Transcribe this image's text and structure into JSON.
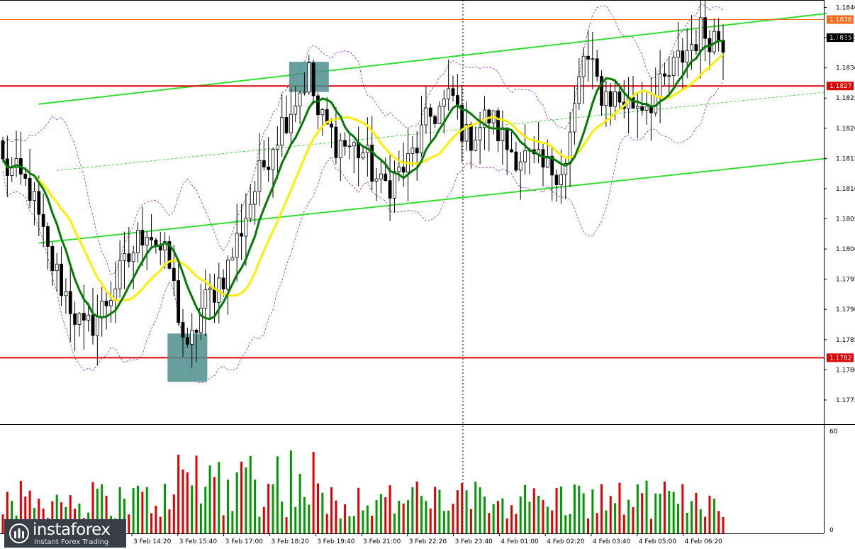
{
  "chart_data": {
    "type": "candlestick",
    "title": "",
    "xlabel": "",
    "ylabel": "",
    "ylim": [
      1.1771,
      1.1841
    ],
    "y_ticks": [
      "1.1840",
      "1.1835",
      "1.1830",
      "1.1825",
      "1.1820",
      "1.1815",
      "1.1810",
      "1.1805",
      "1.1800",
      "1.1795",
      "1.1790",
      "1.1785",
      "1.1780",
      "1.1775"
    ],
    "x_ticks": [
      "3 Feb 14:20",
      "3 Feb 15:40",
      "3 Feb 17:00",
      "3 Feb 18:20",
      "3 Feb 19:40",
      "3 Feb 21:00",
      "3 Feb 22:20",
      "3 Feb 23:40",
      "4 Feb 01:00",
      "4 Feb 02:20",
      "4 Feb 03:40",
      "4 Feb 05:00",
      "4 Feb 06:20"
    ],
    "current_price": "1.1835",
    "levels": [
      {
        "value": 1.1838,
        "label": "1.1838",
        "color": "#ff6a1a"
      },
      {
        "value": 1.1827,
        "label": "1.1827",
        "color": "#e00000"
      },
      {
        "value": 1.1782,
        "label": "1.1782",
        "color": "#e00000"
      }
    ],
    "price_keypoints": [
      [
        0,
        1.1814
      ],
      [
        6,
        1.181
      ],
      [
        10,
        1.1799
      ],
      [
        18,
        1.1786
      ],
      [
        22,
        1.179
      ],
      [
        27,
        1.1797
      ],
      [
        32,
        1.1804
      ],
      [
        37,
        1.1797
      ],
      [
        41,
        1.1782
      ],
      [
        44,
        1.179
      ],
      [
        50,
        1.1797
      ],
      [
        55,
        1.1808
      ],
      [
        60,
        1.1818
      ],
      [
        65,
        1.1825
      ],
      [
        68,
        1.1829
      ],
      [
        70,
        1.1822
      ],
      [
        74,
        1.1818
      ],
      [
        80,
        1.1816
      ],
      [
        84,
        1.181
      ],
      [
        90,
        1.1814
      ],
      [
        95,
        1.1822
      ],
      [
        100,
        1.1825
      ],
      [
        103,
        1.1818
      ],
      [
        108,
        1.1822
      ],
      [
        112,
        1.1817
      ],
      [
        116,
        1.1815
      ],
      [
        120,
        1.1813
      ],
      [
        125,
        1.1814
      ],
      [
        129,
        1.1832
      ],
      [
        133,
        1.1826
      ],
      [
        139,
        1.1824
      ],
      [
        145,
        1.1825
      ],
      [
        150,
        1.1831
      ],
      [
        155,
        1.1836
      ],
      [
        160,
        1.1835
      ]
    ],
    "highlights": [
      {
        "center_index": 68,
        "price_top": 1.1831,
        "price_bottom": 1.1826,
        "color": "#4e8e8e"
      },
      {
        "center_index": 41,
        "price_top": 1.1786,
        "price_bottom": 1.1778,
        "color": "#4e8e8e"
      }
    ],
    "trend_lines": [
      {
        "from": [
          8,
          1.1824
        ],
        "to": [
          183,
          1.1839
        ],
        "color": "#33dd33",
        "width": 2
      },
      {
        "from": [
          8,
          1.1801
        ],
        "to": [
          183,
          1.1815
        ],
        "color": "#33dd33",
        "width": 2
      },
      {
        "from": [
          12,
          1.1813
        ],
        "to": [
          183,
          1.1826
        ],
        "color": "#33dd33",
        "width": 1,
        "dashed": true
      }
    ],
    "volume_axis": {
      "max_label": "60",
      "min_label": "0",
      "max": 60
    },
    "indicators": {
      "ma_fast_color": "#007a00",
      "ma_slow_color": "#ffee00",
      "band_color": "#9933cc"
    }
  },
  "branding": {
    "name": "instaforex",
    "tagline": "Instant Forex Trading"
  }
}
